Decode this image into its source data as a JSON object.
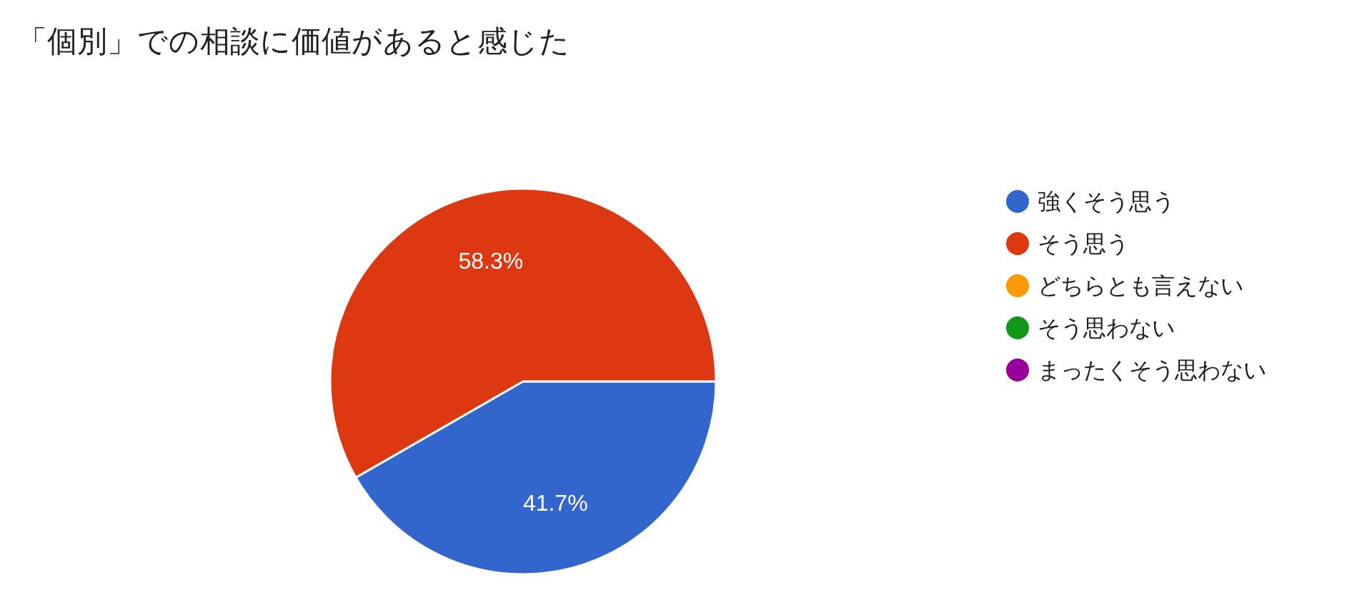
{
  "chart_data": {
    "type": "pie",
    "title": "「個別」での相談に価値があると感じた",
    "categories": [
      "強くそう思う",
      "そう思う",
      "どちらとも言えない",
      "そう思わない",
      "まったくそう思わない"
    ],
    "values": [
      41.7,
      58.3,
      0,
      0,
      0
    ],
    "colors": [
      "#3366cc",
      "#dc3912",
      "#ff9900",
      "#109618",
      "#990099"
    ],
    "value_labels": [
      "41.7%",
      "58.3%",
      null,
      null,
      null
    ],
    "legend": "right"
  }
}
